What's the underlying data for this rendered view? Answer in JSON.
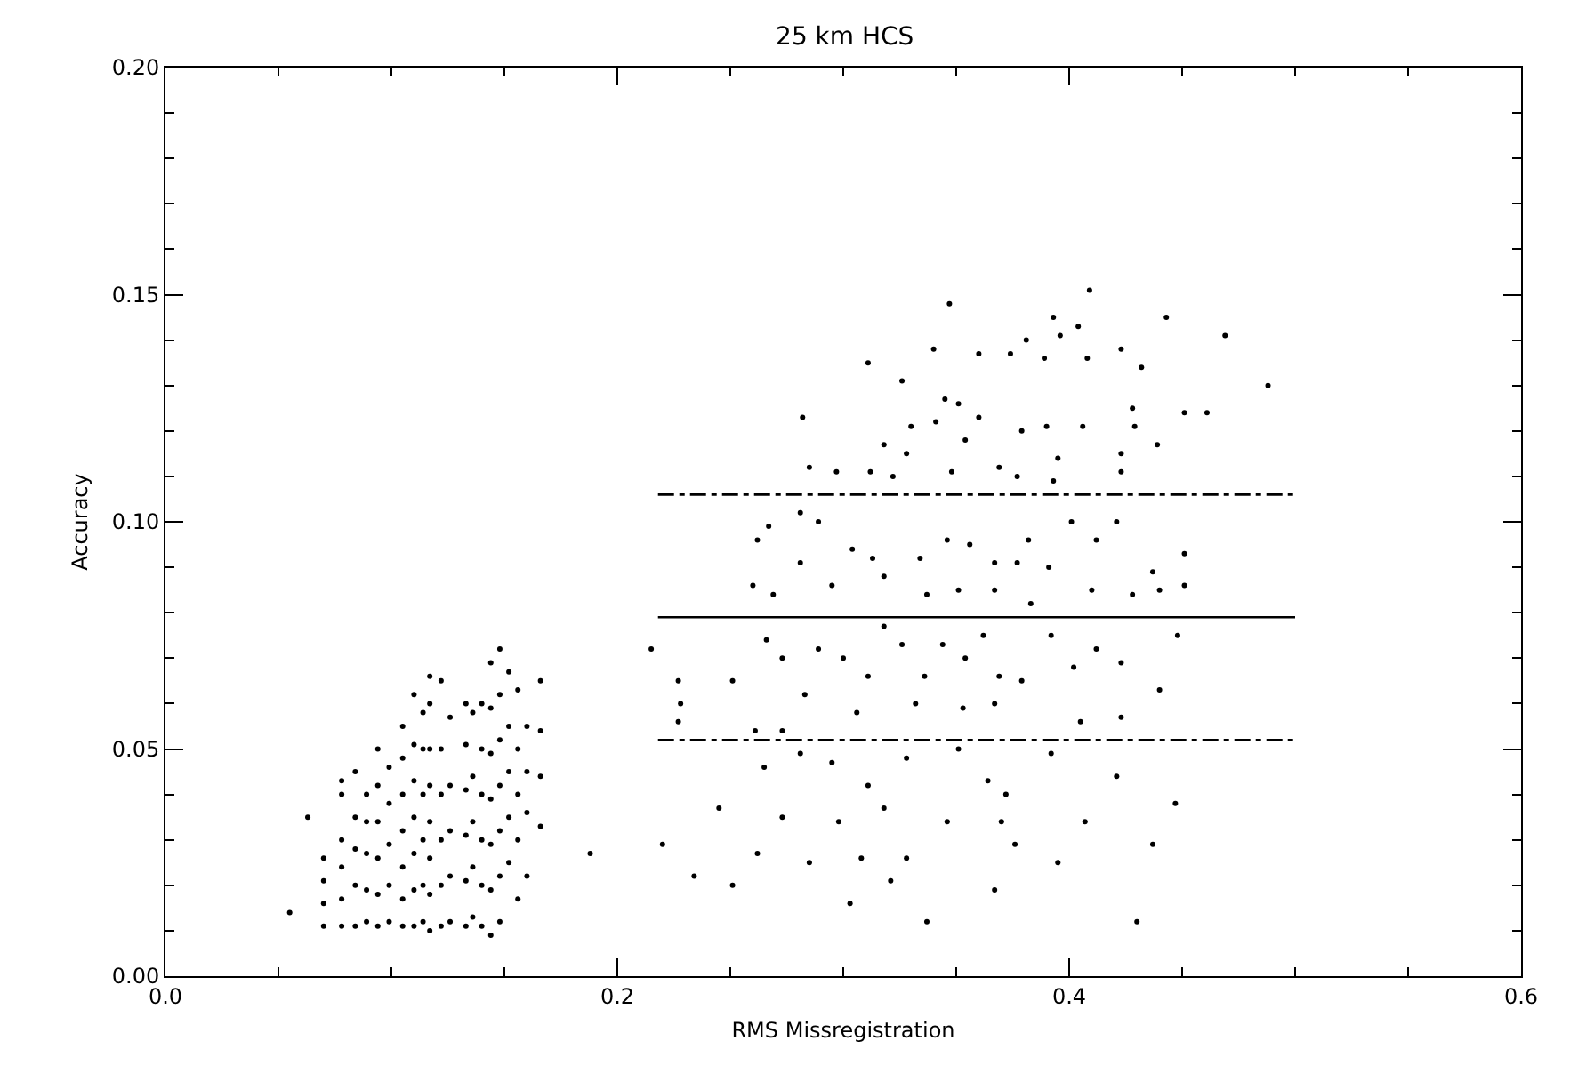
{
  "chart_data": {
    "type": "scatter",
    "title": "25 km HCS",
    "xlabel": "RMS Missregistration",
    "ylabel": "Accuracy",
    "xlim": [
      0,
      0.6
    ],
    "xticks": [
      {
        "value": 0,
        "label": "0.0"
      },
      0.2,
      0.4,
      0.6
    ],
    "ylim": [
      0,
      0.2
    ],
    "yticks": [
      {
        "value": 0,
        "label": "0.00"
      },
      0.05,
      {
        "value": 0.1,
        "label": "0.10"
      },
      0.15,
      {
        "value": 0.2,
        "label": "0.20"
      }
    ],
    "grid": false,
    "marker": "circle",
    "series": [
      {
        "color": "#000000",
        "x": [
          0.055,
          0.063,
          0.07,
          0.07,
          0.07,
          0.07,
          0.078,
          0.078,
          0.078,
          0.078,
          0.078,
          0.078,
          0.084,
          0.084,
          0.084,
          0.084,
          0.084,
          0.089,
          0.089,
          0.089,
          0.089,
          0.089,
          0.094,
          0.094,
          0.094,
          0.094,
          0.094,
          0.094,
          0.099,
          0.099,
          0.099,
          0.099,
          0.099,
          0.105,
          0.105,
          0.105,
          0.105,
          0.105,
          0.105,
          0.105,
          0.11,
          0.11,
          0.11,
          0.11,
          0.11,
          0.11,
          0.11,
          0.114,
          0.114,
          0.114,
          0.114,
          0.114,
          0.114,
          0.117,
          0.117,
          0.117,
          0.117,
          0.117,
          0.117,
          0.117,
          0.117,
          0.122,
          0.122,
          0.122,
          0.122,
          0.122,
          0.122,
          0.126,
          0.126,
          0.126,
          0.126,
          0.126,
          0.133,
          0.133,
          0.133,
          0.133,
          0.133,
          0.133,
          0.136,
          0.136,
          0.136,
          0.136,
          0.136,
          0.14,
          0.14,
          0.14,
          0.14,
          0.14,
          0.14,
          0.144,
          0.144,
          0.144,
          0.144,
          0.144,
          0.144,
          0.144,
          0.148,
          0.148,
          0.148,
          0.148,
          0.148,
          0.148,
          0.148,
          0.152,
          0.152,
          0.152,
          0.152,
          0.152,
          0.156,
          0.156,
          0.156,
          0.156,
          0.156,
          0.16,
          0.16,
          0.16,
          0.16,
          0.166,
          0.166,
          0.166,
          0.166,
          0.188,
          0.409,
          0.347,
          0.443,
          0.393,
          0.311,
          0.34,
          0.36,
          0.374,
          0.381,
          0.389,
          0.396,
          0.404,
          0.408,
          0.423,
          0.432,
          0.469,
          0.488,
          0.326,
          0.282,
          0.345,
          0.351,
          0.33,
          0.341,
          0.36,
          0.379,
          0.39,
          0.406,
          0.428,
          0.429,
          0.451,
          0.461,
          0.395,
          0.439,
          0.423,
          0.318,
          0.328,
          0.354,
          0.369,
          0.285,
          0.297,
          0.312,
          0.322,
          0.348,
          0.377,
          0.393,
          0.423,
          0.262,
          0.267,
          0.281,
          0.289,
          0.304,
          0.313,
          0.334,
          0.346,
          0.356,
          0.367,
          0.377,
          0.382,
          0.391,
          0.401,
          0.412,
          0.421,
          0.437,
          0.451,
          0.26,
          0.269,
          0.281,
          0.295,
          0.318,
          0.337,
          0.351,
          0.367,
          0.383,
          0.41,
          0.428,
          0.44,
          0.451,
          0.251,
          0.266,
          0.273,
          0.289,
          0.3,
          0.311,
          0.318,
          0.326,
          0.336,
          0.344,
          0.354,
          0.362,
          0.369,
          0.379,
          0.392,
          0.402,
          0.412,
          0.423,
          0.44,
          0.448,
          0.283,
          0.306,
          0.332,
          0.353,
          0.367,
          0.405,
          0.423,
          0.261,
          0.273,
          0.265,
          0.281,
          0.295,
          0.311,
          0.328,
          0.351,
          0.364,
          0.372,
          0.392,
          0.421,
          0.447,
          0.273,
          0.298,
          0.318,
          0.346,
          0.37,
          0.407,
          0.262,
          0.285,
          0.308,
          0.328,
          0.376,
          0.437,
          0.234,
          0.251,
          0.321,
          0.367,
          0.395,
          0.303,
          0.337,
          0.43,
          0.215,
          0.227,
          0.228,
          0.227,
          0.22,
          0.245
        ],
        "values": [
          0.014,
          0.035,
          0.011,
          0.016,
          0.021,
          0.026,
          0.011,
          0.017,
          0.024,
          0.03,
          0.04,
          0.043,
          0.011,
          0.02,
          0.028,
          0.035,
          0.045,
          0.012,
          0.019,
          0.027,
          0.034,
          0.04,
          0.011,
          0.018,
          0.026,
          0.034,
          0.042,
          0.05,
          0.012,
          0.02,
          0.029,
          0.038,
          0.046,
          0.011,
          0.017,
          0.024,
          0.032,
          0.04,
          0.048,
          0.055,
          0.011,
          0.019,
          0.027,
          0.035,
          0.043,
          0.051,
          0.062,
          0.012,
          0.02,
          0.03,
          0.04,
          0.05,
          0.058,
          0.01,
          0.018,
          0.026,
          0.034,
          0.042,
          0.05,
          0.06,
          0.066,
          0.011,
          0.02,
          0.03,
          0.04,
          0.05,
          0.065,
          0.012,
          0.022,
          0.032,
          0.042,
          0.057,
          0.011,
          0.021,
          0.031,
          0.041,
          0.051,
          0.06,
          0.013,
          0.024,
          0.034,
          0.044,
          0.058,
          0.011,
          0.02,
          0.03,
          0.04,
          0.05,
          0.06,
          0.009,
          0.019,
          0.029,
          0.039,
          0.049,
          0.059,
          0.069,
          0.012,
          0.022,
          0.032,
          0.042,
          0.052,
          0.062,
          0.072,
          0.025,
          0.035,
          0.045,
          0.055,
          0.067,
          0.017,
          0.03,
          0.04,
          0.05,
          0.063,
          0.022,
          0.036,
          0.045,
          0.055,
          0.033,
          0.044,
          0.054,
          0.065,
          0.027,
          0.151,
          0.148,
          0.145,
          0.145,
          0.135,
          0.138,
          0.137,
          0.137,
          0.14,
          0.136,
          0.141,
          0.143,
          0.136,
          0.138,
          0.134,
          0.141,
          0.13,
          0.131,
          0.123,
          0.127,
          0.126,
          0.121,
          0.122,
          0.123,
          0.12,
          0.121,
          0.121,
          0.125,
          0.121,
          0.124,
          0.124,
          0.114,
          0.117,
          0.115,
          0.117,
          0.115,
          0.118,
          0.112,
          0.112,
          0.111,
          0.111,
          0.11,
          0.111,
          0.11,
          0.109,
          0.111,
          0.096,
          0.099,
          0.102,
          0.1,
          0.094,
          0.092,
          0.092,
          0.096,
          0.095,
          0.091,
          0.091,
          0.096,
          0.09,
          0.1,
          0.096,
          0.1,
          0.089,
          0.093,
          0.086,
          0.084,
          0.091,
          0.086,
          0.088,
          0.084,
          0.085,
          0.085,
          0.082,
          0.085,
          0.084,
          0.085,
          0.086,
          0.065,
          0.074,
          0.07,
          0.072,
          0.07,
          0.066,
          0.077,
          0.073,
          0.066,
          0.073,
          0.07,
          0.075,
          0.066,
          0.065,
          0.075,
          0.068,
          0.072,
          0.069,
          0.063,
          0.075,
          0.062,
          0.058,
          0.06,
          0.059,
          0.06,
          0.056,
          0.057,
          0.054,
          0.054,
          0.046,
          0.049,
          0.047,
          0.042,
          0.048,
          0.05,
          0.043,
          0.04,
          0.049,
          0.044,
          0.038,
          0.035,
          0.034,
          0.037,
          0.034,
          0.034,
          0.034,
          0.027,
          0.025,
          0.026,
          0.026,
          0.029,
          0.029,
          0.022,
          0.02,
          0.021,
          0.019,
          0.025,
          0.016,
          0.012,
          0.012,
          0.072,
          0.065,
          0.06,
          0.056,
          0.029,
          0.037
        ]
      },
      {
        "type": "line",
        "color": "#000000",
        "line_style": "dashed",
        "marker": "none",
        "x": [
          0.218,
          0.5
        ],
        "values": [
          0.106,
          0.106
        ]
      },
      {
        "type": "line",
        "color": "#000000",
        "line_style": "solid",
        "marker": "none",
        "x": [
          0.218,
          0.5
        ],
        "values": [
          0.079,
          0.079
        ]
      },
      {
        "type": "line",
        "color": "#000000",
        "line_style": "dashed",
        "marker": "none",
        "x": [
          0.218,
          0.5
        ],
        "values": [
          0.052,
          0.052
        ]
      }
    ]
  }
}
